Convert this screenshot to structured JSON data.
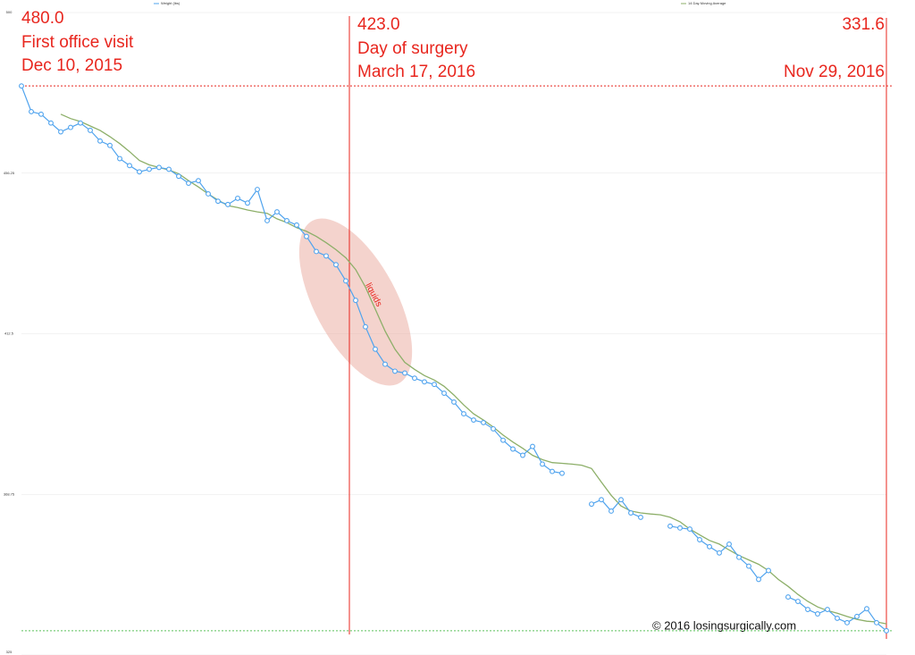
{
  "chart_data": {
    "type": "line",
    "categories": [
      null,
      null,
      null,
      null,
      null,
      null,
      null,
      null,
      null,
      null,
      null,
      null,
      null,
      null,
      null,
      null,
      null,
      null,
      null,
      null,
      null,
      null,
      null,
      null,
      null,
      null,
      null,
      null,
      null,
      null,
      null,
      null,
      null,
      null,
      null,
      null,
      null,
      null,
      null,
      null,
      null,
      null,
      null,
      null,
      null,
      null,
      null,
      null,
      null,
      null,
      null,
      null,
      null,
      null,
      null,
      null,
      null,
      null,
      null,
      null,
      null,
      null,
      null,
      null,
      null,
      null,
      null,
      null,
      null,
      null,
      null,
      null,
      null,
      null,
      null,
      null,
      null,
      null,
      null,
      null,
      null,
      null,
      null,
      null,
      null,
      null,
      null,
      null,
      null
    ],
    "series": [
      {
        "name": "Weight (lbs)",
        "color": "#4fa3ee",
        "markers": true,
        "values": [
          480,
          473,
          472.3,
          469.9,
          467.5,
          468.7,
          469.9,
          467.9,
          465,
          463.8,
          460.2,
          458.3,
          456.6,
          457.3,
          457.8,
          457.3,
          455.4,
          453.5,
          454.2,
          450.6,
          448.6,
          447.7,
          449.4,
          448.1,
          451.8,
          443.3,
          445.7,
          443.3,
          442.1,
          439,
          434.9,
          433.7,
          431.3,
          426.9,
          421.6,
          414.4,
          408.3,
          404.2,
          402.3,
          401.8,
          400.4,
          399.4,
          398.7,
          396.3,
          393.9,
          390.7,
          389,
          388.3,
          386.6,
          383.5,
          381.1,
          379.4,
          381.8,
          377,
          375,
          374.5,
          null,
          null,
          366.1,
          367.3,
          364.2,
          367.3,
          363.7,
          362.5,
          null,
          null,
          360.1,
          359.6,
          359.3,
          356.4,
          354.5,
          352.8,
          355.2,
          351.6,
          349.2,
          345.6,
          348,
          null,
          340.8,
          339.6,
          337.4,
          336.2,
          337.4,
          335,
          333.8,
          335.5,
          337.6,
          333.8,
          331.6
        ]
      },
      {
        "name": "14 Day Moving Average",
        "color": "#8daf69",
        "markers": false,
        "values": [
          null,
          null,
          null,
          null,
          472.3,
          471.1,
          470.3,
          469.1,
          467.9,
          466.2,
          464.3,
          462.1,
          459.7,
          458.5,
          457.8,
          457.1,
          456.1,
          454.2,
          452.5,
          450.6,
          448.9,
          447.4,
          446.9,
          446.2,
          445.7,
          445.3,
          443.8,
          442.8,
          441.4,
          440.4,
          439,
          437.3,
          435.4,
          433.2,
          430,
          425.2,
          419.2,
          413.2,
          408.3,
          404.7,
          402.8,
          401.1,
          399.9,
          398.2,
          395.8,
          393.1,
          390.7,
          389,
          387.1,
          384.9,
          383,
          381.3,
          379.4,
          378.2,
          377.4,
          377.2,
          377,
          376.7,
          375.8,
          372.1,
          368.5,
          365.6,
          364.2,
          363.7,
          363.4,
          363.2,
          362.5,
          361.3,
          359.3,
          357.7,
          356.2,
          355.2,
          353.6,
          352.1,
          350.9,
          349.7,
          348,
          345.6,
          343.7,
          341.5,
          339.6,
          338.1,
          337.1,
          336.4,
          335.5,
          334.7,
          334.2,
          334,
          333.5
        ]
      }
    ],
    "ylim": [
      325,
      500
    ],
    "yticks": [
      500,
      456.25,
      412.5,
      368.75,
      325
    ],
    "grid": true,
    "annotations": [
      {
        "value": 480,
        "label": "480.0",
        "lines": [
          "First office visit",
          "Dec 10, 2015"
        ]
      },
      {
        "value": 423,
        "label": "423.0",
        "lines": [
          "Day of surgery",
          "March 17, 2016"
        ]
      },
      {
        "value": 331.6,
        "label": "331.6",
        "lines": [
          "Nov 29, 2016"
        ]
      }
    ],
    "note": "liquids",
    "credit": "© 2016 losingsurgically.com"
  }
}
